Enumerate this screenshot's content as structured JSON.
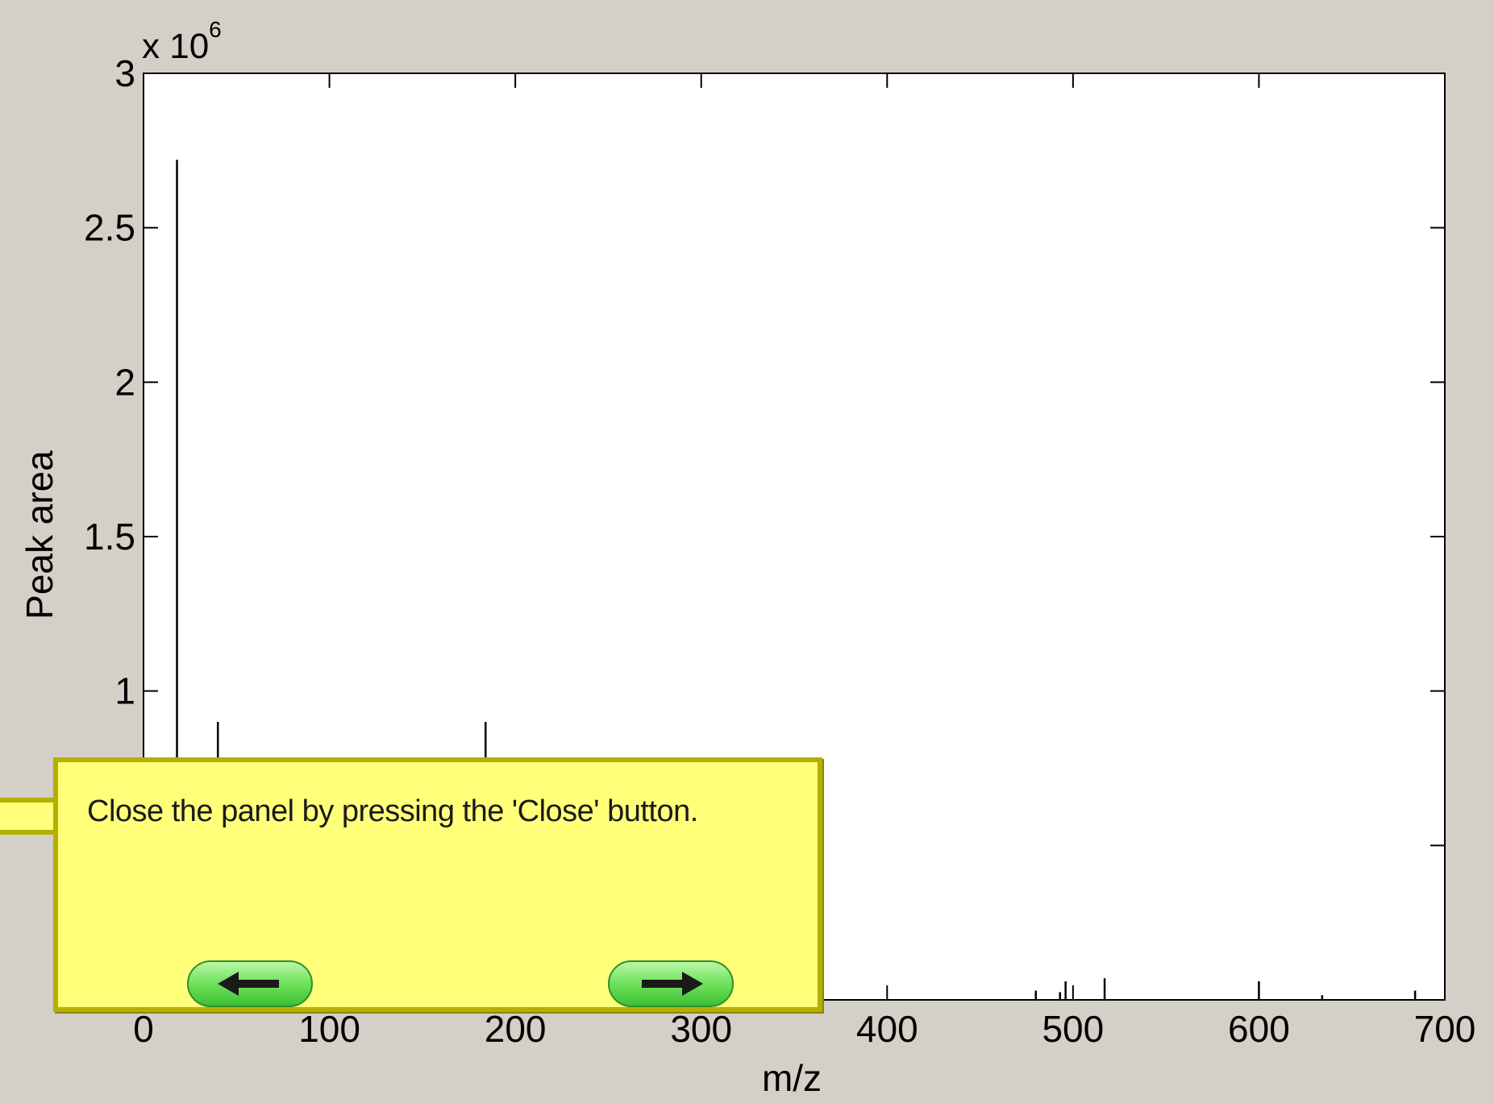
{
  "chart_data": {
    "type": "bar",
    "xlabel": "m/z",
    "ylabel": "Peak area",
    "xlim": [
      0,
      700
    ],
    "ylim": [
      0,
      3000000
    ],
    "y_exponent_label": "x 10",
    "y_exponent_power": "6",
    "xticks": [
      "0",
      "100",
      "200",
      "300",
      "400",
      "500",
      "600",
      "700"
    ],
    "yticks": [
      "1",
      "1.5",
      "2",
      "2.5",
      "3"
    ],
    "ytick_values": [
      1,
      1.5,
      2,
      2.5,
      3
    ],
    "xtick_values": [
      0,
      100,
      200,
      300,
      400,
      500,
      600,
      700
    ],
    "grid": false,
    "x": [
      18,
      40,
      184,
      480,
      493,
      496,
      517,
      600,
      634,
      684
    ],
    "values": [
      2720000,
      900000,
      900000,
      30000,
      25000,
      60000,
      70000,
      60000,
      15000,
      30000
    ]
  },
  "callout": {
    "text": "Close the panel by pressing the 'Close' button.",
    "prev_icon": "arrow-left-icon",
    "next_icon": "arrow-right-icon"
  }
}
